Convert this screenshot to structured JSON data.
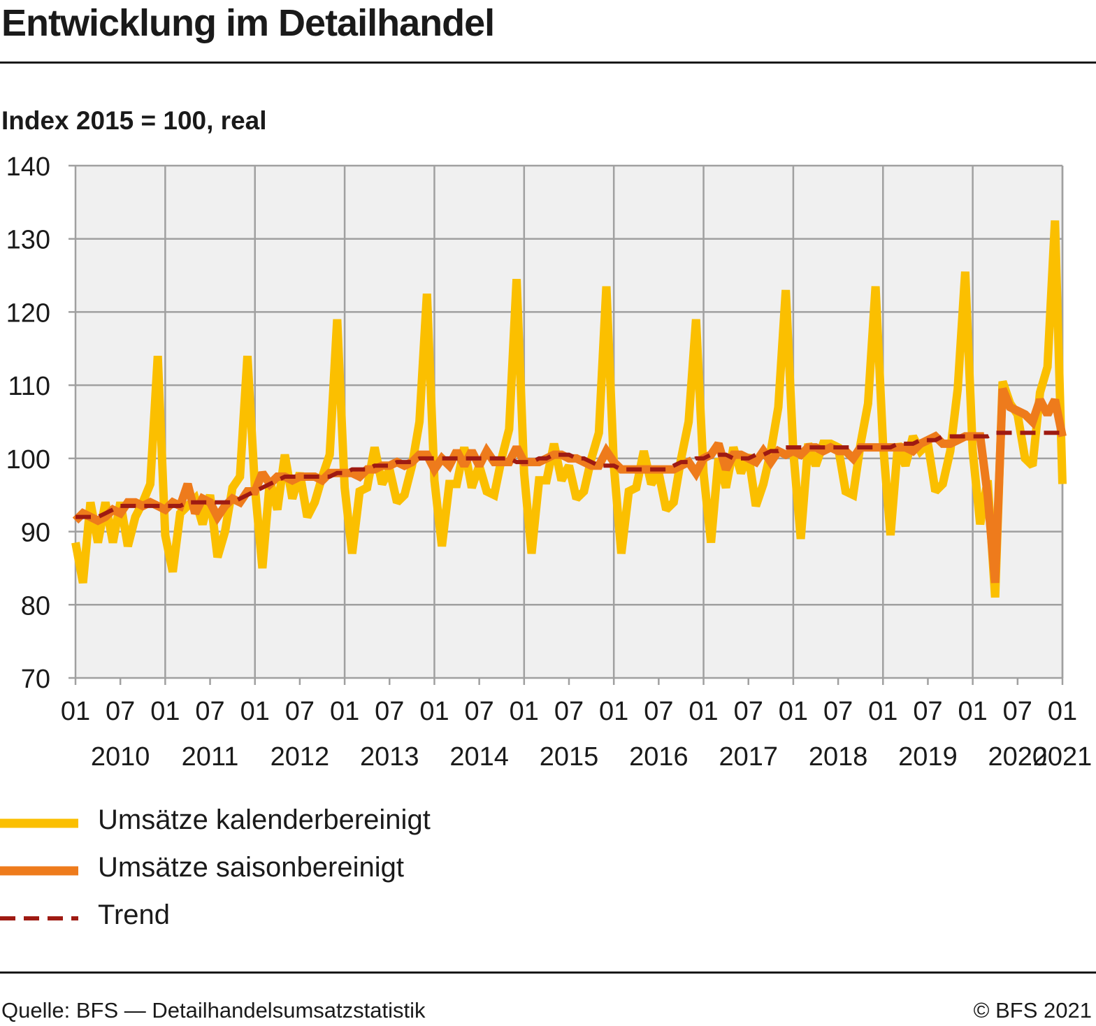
{
  "title": "Entwicklung im Detailhandel",
  "subtitle": "Index 2015 = 100, real",
  "source": "Quelle: BFS — Detailhandelsumsatzstatistik",
  "copyright": "© BFS 2021",
  "colors": {
    "calendar_adjusted": "#fbbf00",
    "seasonally_adjusted": "#ee7b1c",
    "trend": "#9e1a12",
    "plot_background": "#f0f0f0",
    "grid": "#a0a0a0"
  },
  "legend": [
    {
      "label": "Umsätze kalenderbereinigt",
      "series": "kal"
    },
    {
      "label": "Umsätze saisonbereinigt",
      "series": "sai"
    },
    {
      "label": "Trend",
      "series": "trend"
    }
  ],
  "chart_data": {
    "type": "line",
    "y_ticks": [
      70,
      80,
      90,
      100,
      110,
      120,
      130,
      140
    ],
    "ylim": [
      70,
      140
    ],
    "x_start": "2010-01",
    "x_end": "2021-01",
    "month_tick_labels": [
      "01",
      "07",
      "01",
      "07",
      "01",
      "07",
      "01",
      "07",
      "01",
      "07",
      "01",
      "07",
      "01",
      "07",
      "01",
      "07",
      "01",
      "07",
      "01",
      "07",
      "01",
      "07",
      "01"
    ],
    "year_labels": [
      "2010",
      "2011",
      "2012",
      "2013",
      "2014",
      "2015",
      "2016",
      "2017",
      "2018",
      "2019",
      "2020",
      "2021"
    ],
    "grid": true,
    "legend_position": "bottom",
    "series": [
      {
        "name": "Umsätze kalenderbereinigt",
        "key": "kal",
        "values": [
          88.5,
          83,
          94,
          88.5,
          94,
          88.5,
          94,
          88,
          92,
          94,
          96.5,
          114,
          89.5,
          84.5,
          92.5,
          93.5,
          94.5,
          91,
          95,
          86.5,
          90,
          96,
          97.5,
          114,
          96,
          85,
          97,
          93,
          100.5,
          94.5,
          98,
          92,
          94,
          97.5,
          100.5,
          119,
          96,
          87,
          95.5,
          96,
          101.5,
          96.5,
          98.5,
          94,
          95,
          99,
          105,
          122.5,
          97,
          88,
          96.5,
          96.5,
          101.5,
          96,
          99,
          95.5,
          95,
          100,
          104,
          124.5,
          98,
          87,
          97,
          97,
          102,
          97,
          99,
          94.5,
          95.5,
          100,
          103.5,
          123.5,
          99,
          87,
          95.5,
          96,
          101,
          96.5,
          98,
          93,
          94,
          100,
          105,
          119,
          98,
          88.5,
          100,
          96,
          101.5,
          98,
          100.5,
          93.5,
          96.5,
          101,
          107,
          123,
          101,
          89,
          102,
          99,
          102,
          102,
          101.5,
          95.5,
          95,
          102,
          107.5,
          123.5,
          102,
          89.5,
          102,
          99,
          103,
          101,
          102,
          95.5,
          96.5,
          101,
          109.5,
          125.5,
          101,
          91,
          97,
          81,
          110.5,
          107.5,
          106,
          100,
          99,
          109,
          112.5,
          132.5,
          96.5
        ]
      },
      {
        "name": "Umsätze saisonbereinigt",
        "key": "sai",
        "values": [
          91.5,
          92.5,
          92,
          91.5,
          92,
          93,
          92.5,
          94,
          94,
          93.5,
          94,
          93.5,
          93,
          94,
          93.5,
          96.5,
          92.5,
          94.5,
          94,
          92,
          93.5,
          94.5,
          94,
          95.5,
          95.5,
          98,
          96.5,
          97.5,
          97.5,
          97,
          97.5,
          97.5,
          97.5,
          97,
          98,
          98,
          98,
          98,
          97.5,
          98.5,
          98.5,
          99,
          99,
          99.5,
          99,
          99.5,
          100.5,
          100.5,
          98.5,
          100,
          99,
          101,
          99,
          101,
          99,
          101,
          99.5,
          99.5,
          99.5,
          101.5,
          99.5,
          99.5,
          99.5,
          100,
          100.5,
          100.5,
          100,
          100,
          99.5,
          99,
          99,
          101,
          99.5,
          98.5,
          98.5,
          98.5,
          98.5,
          98.5,
          98.5,
          98.5,
          98.5,
          99,
          99.5,
          98,
          100,
          100.5,
          102,
          98.5,
          100.5,
          100.5,
          100,
          99.5,
          101,
          99.5,
          101,
          100.5,
          101,
          100.5,
          101.5,
          101.5,
          101,
          101.5,
          101,
          101,
          100,
          101.5,
          101.5,
          101.5,
          101.5,
          101.5,
          101.5,
          101.5,
          101,
          102,
          102.5,
          103,
          102,
          102,
          102.5,
          103,
          103,
          103,
          95,
          83,
          109.5,
          107,
          106.5,
          106,
          105,
          108,
          106,
          108,
          103
        ]
      },
      {
        "name": "Trend",
        "key": "trend",
        "values": [
          92,
          92,
          92,
          92,
          92.5,
          93,
          93.5,
          93.5,
          93.5,
          93.5,
          93.5,
          93.5,
          93.5,
          93.5,
          93.5,
          94,
          94,
          94,
          94,
          94,
          94,
          94,
          94.5,
          95,
          95.5,
          96,
          96.5,
          97,
          97.5,
          97.5,
          97.5,
          97.5,
          97.5,
          97.5,
          97.5,
          98,
          98,
          98.5,
          98.5,
          98.5,
          99,
          99,
          99,
          99.5,
          99.5,
          99.5,
          100,
          100,
          100,
          100,
          100,
          100,
          100,
          100,
          100,
          100,
          100,
          100,
          100,
          99.5,
          99.5,
          99.5,
          100,
          100,
          100.5,
          100.5,
          100.5,
          100,
          100,
          99.5,
          99,
          99,
          99,
          98.5,
          98.5,
          98.5,
          98.5,
          98.5,
          98.5,
          98.5,
          99,
          99.5,
          99.5,
          100,
          100,
          100.5,
          100.5,
          100.5,
          100,
          100,
          100,
          100.5,
          100.5,
          101,
          101,
          101.5,
          101.5,
          101.5,
          101.5,
          101.5,
          101.5,
          101.5,
          101.5,
          101.5,
          101.5,
          101.5,
          101.5,
          101.5,
          101.5,
          101.5,
          102,
          102,
          102,
          102.5,
          102.5,
          102.5,
          103,
          103,
          103,
          103,
          103,
          103,
          103,
          103.5,
          103.5,
          103.5,
          103.5,
          103.5,
          103.5,
          103.5,
          103.5,
          103.5,
          103.5
        ]
      }
    ]
  }
}
